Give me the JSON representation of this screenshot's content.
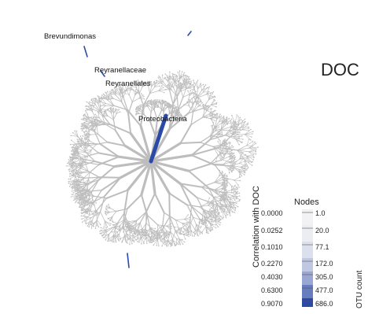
{
  "title": "DOC",
  "labels": {
    "brevundimonas": "Brevundimonas",
    "reyranellaceae": "Reyranellaceae",
    "reyranellales": "Reyranellales",
    "proteobacteria": "Proteobacteria"
  },
  "legend": {
    "title": "Nodes",
    "color_axis_label": "Correlation with DOC",
    "size_axis_label": "OTU count",
    "correlation_values": [
      "0.0000",
      "0.0252",
      "0.1010",
      "0.2270",
      "0.4030",
      "0.6300",
      "0.9070"
    ],
    "count_values": [
      "1.0",
      "20.0",
      "77.1",
      "172.0",
      "305.0",
      "477.0",
      "686.0"
    ]
  },
  "colors": {
    "branch": "#bdbdbd",
    "highlight": "#2b4aa8",
    "legend_low": "#f2f2f4",
    "legend_high": "#2b4aa8"
  }
}
